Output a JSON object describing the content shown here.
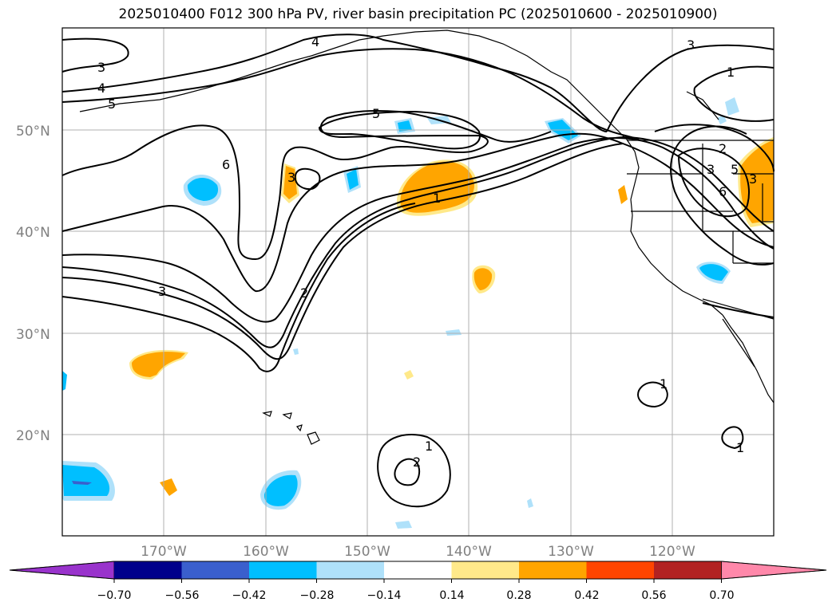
{
  "title": "2025010400 F012 300 hPa PV, river basin precipitation PC (2025010600 - 2025010900)",
  "lat_labels": [
    "50°N",
    "40°N",
    "30°N",
    "20°N"
  ],
  "lon_labels": [
    "170°W",
    "160°W",
    "150°W",
    "140°W",
    "130°W",
    "120°W"
  ],
  "colorbar": {
    "colors": [
      "#9933cc",
      "#00008b",
      "#3a5fcd",
      "#00bfff",
      "#afe1fa",
      "#ffffff",
      "#ffe98a",
      "#ffa500",
      "#ff4500",
      "#b22222",
      "#ff88aa"
    ],
    "tick_labels": [
      "−0.70",
      "−0.56",
      "−0.42",
      "−0.28",
      "−0.14",
      "0.14",
      "0.28",
      "0.42",
      "0.56",
      "0.70"
    ]
  },
  "contour_labels": [
    "3",
    "4",
    "5",
    "6",
    "5",
    "3",
    "1",
    "3",
    "2",
    "4",
    "3",
    "1",
    "2",
    "3",
    "6",
    "5",
    "3",
    "1",
    "2",
    "1",
    "1"
  ],
  "colors": {
    "contour": "#000000",
    "grid": "#b0b0b0",
    "coast": "#000000",
    "positive": "#ffa500",
    "negative": "#00bfff"
  }
}
